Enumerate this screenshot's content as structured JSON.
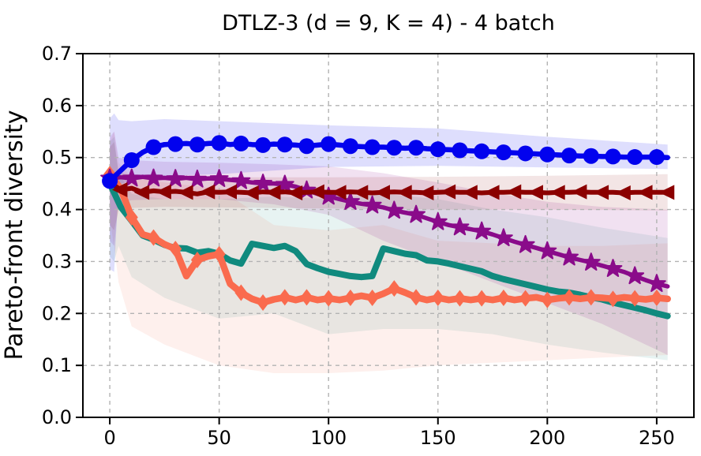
{
  "chart_data": {
    "type": "line",
    "title": "DTLZ-3 (d = 9, K = 4) - 4 batch",
    "xlabel": "",
    "ylabel": "Pareto-front diversity",
    "xlim": [
      -12.3,
      267
    ],
    "ylim": [
      0.0,
      0.7
    ],
    "xticks": [
      0,
      50,
      100,
      150,
      200,
      250
    ],
    "yticks": [
      0.0,
      0.1,
      0.2,
      0.3,
      0.4,
      0.5,
      0.6,
      0.7
    ],
    "grid": true,
    "grid_color": "#b3b3b3",
    "axis_color": "#000000",
    "legend": "none",
    "x": [
      0,
      5,
      10,
      15,
      20,
      25,
      30,
      35,
      40,
      45,
      50,
      55,
      60,
      65,
      70,
      75,
      80,
      85,
      90,
      95,
      100,
      105,
      110,
      115,
      120,
      125,
      130,
      135,
      140,
      145,
      150,
      155,
      160,
      165,
      170,
      175,
      180,
      185,
      190,
      195,
      200,
      205,
      210,
      215,
      220,
      225,
      230,
      235,
      240,
      245,
      250,
      255
    ],
    "series": [
      {
        "name": "teal-line",
        "color": "#108a7e",
        "marker": "none",
        "marker_phase": 0,
        "line_width": 8,
        "y": [
          0.45,
          0.405,
          0.378,
          0.35,
          0.342,
          0.332,
          0.326,
          0.325,
          0.317,
          0.32,
          0.315,
          0.302,
          0.296,
          0.334,
          0.33,
          0.326,
          0.33,
          0.32,
          0.295,
          0.287,
          0.28,
          0.276,
          0.272,
          0.27,
          0.272,
          0.325,
          0.32,
          0.315,
          0.312,
          0.302,
          0.3,
          0.296,
          0.291,
          0.286,
          0.281,
          0.272,
          0.266,
          0.261,
          0.256,
          0.251,
          0.246,
          0.242,
          0.24,
          0.236,
          0.231,
          0.227,
          0.221,
          0.216,
          0.211,
          0.206,
          0.2,
          0.195
        ],
        "band": {
          "x": [
            0,
            2,
            4,
            10,
            25,
            50,
            75,
            100,
            125,
            150,
            175,
            200,
            225,
            255
          ],
          "upper": [
            0.53,
            0.54,
            0.47,
            0.43,
            0.42,
            0.42,
            0.425,
            0.42,
            0.43,
            0.42,
            0.4,
            0.385,
            0.365,
            0.345
          ],
          "lower": [
            0.31,
            0.3,
            0.33,
            0.27,
            0.23,
            0.19,
            0.2,
            0.16,
            0.17,
            0.17,
            0.16,
            0.14,
            0.125,
            0.11
          ],
          "opacity": 0.1
        }
      },
      {
        "name": "orange-diamond",
        "color": "#fa6b4e",
        "marker": "diamond",
        "marker_phase": 0,
        "line_width": 8.5,
        "y": [
          0.468,
          0.44,
          0.385,
          0.352,
          0.346,
          0.333,
          0.324,
          0.272,
          0.303,
          0.31,
          0.314,
          0.257,
          0.24,
          0.228,
          0.221,
          0.227,
          0.231,
          0.226,
          0.231,
          0.226,
          0.229,
          0.226,
          0.23,
          0.234,
          0.23,
          0.238,
          0.248,
          0.24,
          0.231,
          0.226,
          0.23,
          0.226,
          0.229,
          0.226,
          0.229,
          0.226,
          0.23,
          0.226,
          0.229,
          0.231,
          0.226,
          0.229,
          0.231,
          0.228,
          0.231,
          0.23,
          0.228,
          0.231,
          0.229,
          0.227,
          0.23,
          0.228
        ],
        "band": {
          "x": [
            0,
            2,
            4,
            10,
            25,
            50,
            75,
            100,
            125,
            150,
            175,
            200,
            225,
            255
          ],
          "upper": [
            0.53,
            0.55,
            0.49,
            0.462,
            0.452,
            0.44,
            0.37,
            0.36,
            0.37,
            0.34,
            0.335,
            0.33,
            0.33,
            0.335
          ],
          "lower": [
            0.38,
            0.33,
            0.26,
            0.175,
            0.14,
            0.1,
            0.085,
            0.085,
            0.09,
            0.1,
            0.105,
            0.11,
            0.115,
            0.12
          ],
          "opacity": 0.1
        }
      },
      {
        "name": "purple-star",
        "color": "#8a0b8a",
        "marker": "star",
        "marker_phase": 0,
        "line_width": 5.5,
        "y": [
          0.46,
          0.462,
          0.46,
          0.463,
          0.46,
          0.461,
          0.459,
          0.461,
          0.458,
          0.46,
          0.459,
          0.457,
          0.455,
          0.452,
          0.45,
          0.45,
          0.448,
          0.444,
          0.437,
          0.43,
          0.425,
          0.42,
          0.415,
          0.411,
          0.408,
          0.404,
          0.398,
          0.394,
          0.39,
          0.383,
          0.376,
          0.37,
          0.366,
          0.362,
          0.358,
          0.352,
          0.345,
          0.338,
          0.332,
          0.326,
          0.32,
          0.314,
          0.308,
          0.303,
          0.298,
          0.292,
          0.286,
          0.28,
          0.272,
          0.264,
          0.257,
          0.252
        ],
        "band": {
          "x": [
            0,
            2,
            4,
            10,
            25,
            50,
            75,
            100,
            125,
            150,
            175,
            200,
            225,
            255
          ],
          "upper": [
            0.54,
            0.55,
            0.5,
            0.495,
            0.492,
            0.49,
            0.487,
            0.483,
            0.47,
            0.452,
            0.432,
            0.415,
            0.405,
            0.4
          ],
          "lower": [
            0.34,
            0.33,
            0.412,
            0.418,
            0.42,
            0.42,
            0.41,
            0.39,
            0.34,
            0.3,
            0.26,
            0.22,
            0.18,
            0.12
          ],
          "opacity": 0.12
        }
      },
      {
        "name": "darkred-triangle-left",
        "color": "#8b0000",
        "marker": "tri-left",
        "marker_phase": 5,
        "line_width": 6,
        "y": [
          0.452,
          0.438,
          0.441,
          0.433,
          0.436,
          0.434,
          0.435,
          0.433,
          0.43,
          0.434,
          0.433,
          0.434,
          0.433,
          0.432,
          0.434,
          0.433,
          0.434,
          0.432,
          0.433,
          0.434,
          0.433,
          0.433,
          0.434,
          0.433,
          0.432,
          0.433,
          0.434,
          0.433,
          0.433,
          0.432,
          0.433,
          0.434,
          0.433,
          0.433,
          0.432,
          0.433,
          0.433,
          0.434,
          0.433,
          0.433,
          0.432,
          0.433,
          0.433,
          0.434,
          0.433,
          0.433,
          0.433,
          0.432,
          0.433,
          0.433,
          0.433,
          0.433
        ],
        "band": {
          "x": [
            0,
            2,
            4,
            10,
            25,
            50,
            100,
            150,
            200,
            255
          ],
          "upper": [
            0.52,
            0.53,
            0.472,
            0.466,
            0.462,
            0.462,
            0.462,
            0.463,
            0.465,
            0.468
          ],
          "lower": [
            0.37,
            0.36,
            0.398,
            0.403,
            0.405,
            0.404,
            0.402,
            0.4,
            0.4,
            0.398
          ],
          "opacity": 0.1
        }
      },
      {
        "name": "blue-circle",
        "color": "#0202ee",
        "marker": "circle",
        "marker_phase": 0,
        "line_width": 6.5,
        "y": [
          0.455,
          0.475,
          0.495,
          0.51,
          0.52,
          0.525,
          0.526,
          0.527,
          0.525,
          0.527,
          0.528,
          0.525,
          0.527,
          0.525,
          0.524,
          0.526,
          0.525,
          0.524,
          0.522,
          0.524,
          0.526,
          0.524,
          0.522,
          0.521,
          0.52,
          0.52,
          0.519,
          0.518,
          0.519,
          0.517,
          0.516,
          0.515,
          0.514,
          0.513,
          0.512,
          0.511,
          0.51,
          0.509,
          0.508,
          0.507,
          0.506,
          0.505,
          0.504,
          0.503,
          0.503,
          0.502,
          0.502,
          0.501,
          0.501,
          0.501,
          0.501,
          0.5
        ],
        "band": {
          "x": [
            0,
            2,
            4,
            10,
            25,
            50,
            100,
            150,
            200,
            255
          ],
          "upper": [
            0.575,
            0.585,
            0.572,
            0.57,
            0.574,
            0.57,
            0.562,
            0.556,
            0.54,
            0.525
          ],
          "lower": [
            0.285,
            0.28,
            0.448,
            0.455,
            0.465,
            0.468,
            0.482,
            0.484,
            0.481,
            0.478
          ],
          "opacity": 0.13
        }
      }
    ]
  }
}
